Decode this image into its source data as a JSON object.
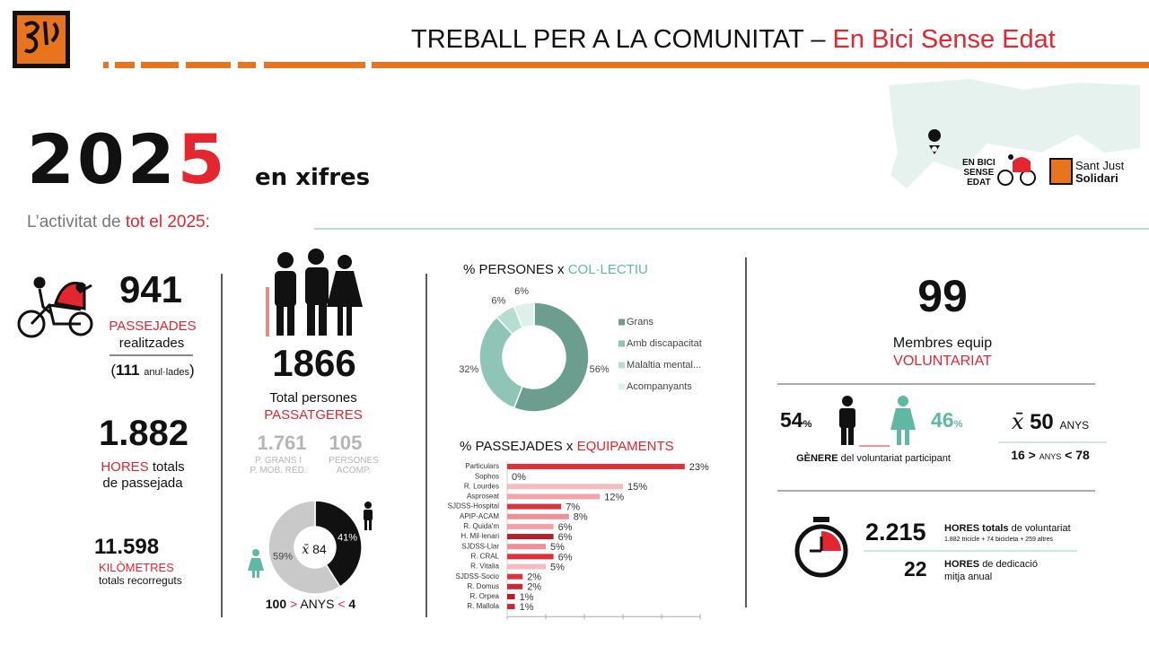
{
  "header": {
    "title": "TREBALL PER A LA COMUNITAT",
    "separator": "–",
    "highlight": "En Bici Sense Edat"
  },
  "hero": {
    "year_main": "202",
    "year_accent": "5",
    "tagline": "en xifres",
    "intro": "L’activitat de",
    "intro_highlight": "tot el 2025:"
  },
  "partners": {
    "ebse": [
      "EN BICI",
      "SENSE",
      "EDAT"
    ],
    "sjs": [
      "Sant Just",
      "Solidari"
    ]
  },
  "rides": {
    "total": "941",
    "label": "PASSEJADES",
    "sub": "realitzades",
    "open": "(",
    "cancelled": "111",
    "cancelled_label": "anul·lades",
    "close": ")"
  },
  "ride_hours": {
    "total": "1.882",
    "label": "HORES",
    "label_rest": "totals",
    "sub": "de passejada"
  },
  "distance": {
    "total": "11.598",
    "label": "KILÒMETRES",
    "sub": "totals recorreguts"
  },
  "passengers": {
    "total": "1866",
    "label": "Total persones",
    "label_accent": "PASSATGERES",
    "groups": [
      {
        "value": "1.761",
        "label": [
          "P. GRANS I",
          "P. MOB. RED."
        ]
      },
      {
        "value": "105",
        "label": [
          "PERSONES",
          "ACOMP."
        ]
      }
    ],
    "mean_symbol": "x̄",
    "mean_age": "84",
    "age_range": [
      "100",
      ">",
      "ANYS",
      "<",
      "4"
    ]
  },
  "volunteers": {
    "total": "99",
    "label": "Membres equip",
    "label_accent": "VOLUNTARIAT",
    "male": {
      "value": "54",
      "unit": "%"
    },
    "female": {
      "value": "46",
      "unit": "%"
    },
    "gender_caption": "GÈNERE",
    "gender_caption_rest": "del voluntariat participant",
    "mean_symbol": "x̄",
    "mean_age": "50",
    "age_unit": "ANYS",
    "age_range": [
      "16",
      ">",
      "ANYS",
      "<",
      "78"
    ],
    "hours_total": "2.215",
    "hours_label": "HORES totals",
    "hours_label_rest": "de voluntariat",
    "hours_breakdown": "1.882 tricicle + 74 bicicleta + 259 altres",
    "dedication": "22",
    "dedication_label": "HORES",
    "dedication_label_rest": "de dedicació",
    "dedication_sub": "mitja anual"
  },
  "chart_data": [
    {
      "type": "donut",
      "values": [
        41,
        59
      ],
      "value_labels": [
        "41%",
        "59%"
      ],
      "colors": [
        "#111111",
        "#c9c9c9"
      ]
    },
    {
      "type": "donut",
      "title": "% PERSONES x",
      "title_accent": "COL·LECTIU",
      "categories": [
        "Grans",
        "Amb discapacitat",
        "Malaltia mental...",
        "Acompanyants"
      ],
      "values": [
        56,
        32,
        6,
        6
      ],
      "value_labels": [
        "56%",
        "32%",
        "6%",
        "6%"
      ],
      "colors": [
        "#6b9e8f",
        "#8fc5b6",
        "#b5ddd2",
        "#ddf0ea"
      ],
      "legend": "right"
    },
    {
      "type": "bar",
      "orientation": "horizontal",
      "title": "% PASSEJADES x",
      "title_accent": "EQUIPAMENTS",
      "categories": [
        "Particulars",
        "Sophos",
        "R. Lourdes",
        "Asproseat",
        "SJDSS-Hospital",
        "APIP-ACAM",
        "R. Quida'm",
        "H. Mil·lenari",
        "SJDSS-Llar",
        "R. CRAL",
        "R. Vitalia",
        "SJDSS-Socio",
        "R. Domus",
        "R. Orpea",
        "R. Mallola"
      ],
      "values": [
        23,
        0,
        15,
        12,
        7,
        8,
        6,
        6,
        5,
        6,
        5,
        2,
        2,
        1,
        1
      ],
      "value_labels": [
        "23%",
        "0%",
        "15%",
        "12%",
        "7%",
        "8%",
        "6%",
        "6%",
        "5%",
        "6%",
        "5%",
        "2%",
        "2%",
        "1%",
        "1%"
      ],
      "colors": [
        "#e0303a",
        "#e0303a",
        "#f5bcc0",
        "#f2a5aa",
        "#d8363f",
        "#ee9097",
        "#f0a2a8",
        "#b3202a",
        "#ee9097",
        "#e0303a",
        "#f5bcc0",
        "#d8363f",
        "#c92a33",
        "#b3202a",
        "#c92a33"
      ],
      "xlim": [
        0,
        25
      ],
      "xticks": [
        0,
        5,
        10,
        15,
        20,
        25
      ]
    }
  ]
}
